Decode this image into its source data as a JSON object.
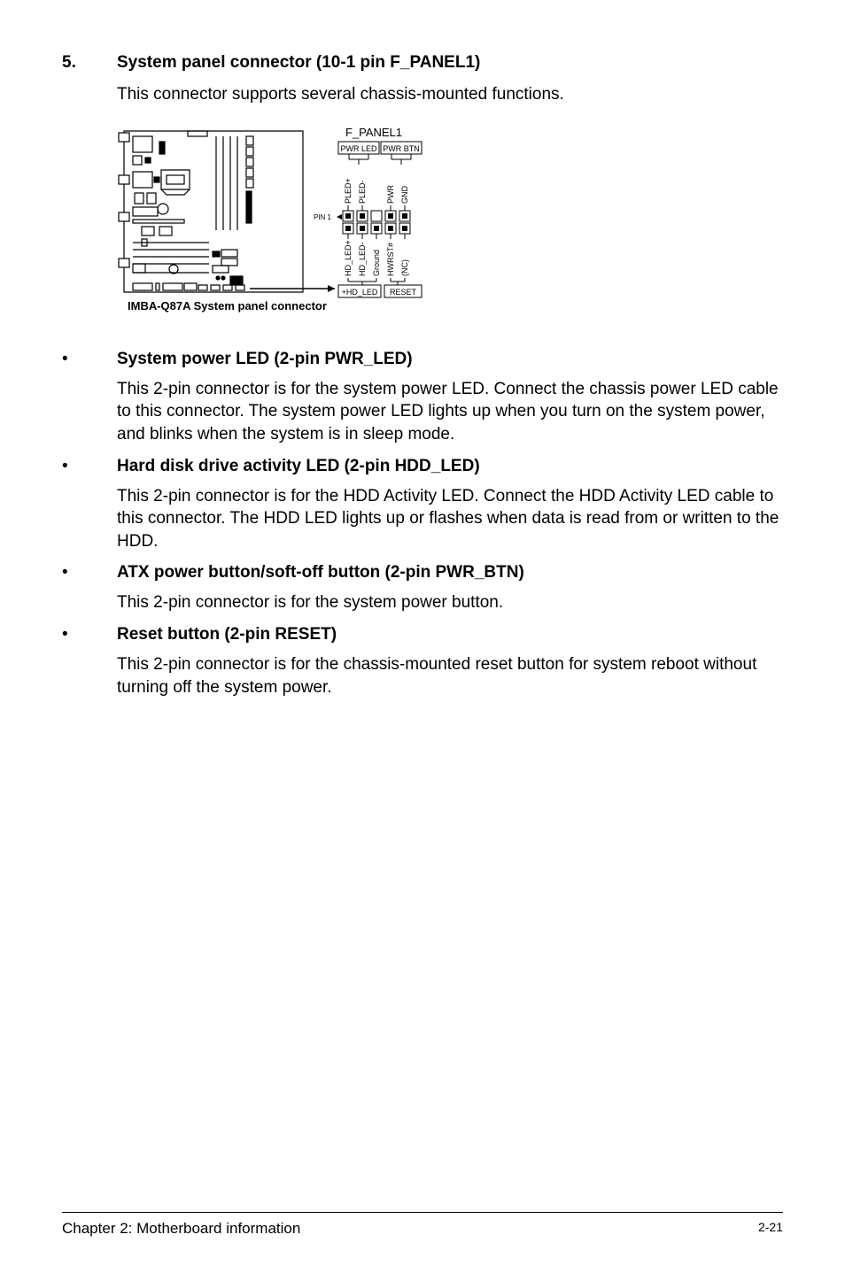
{
  "section": {
    "number": "5.",
    "title": "System panel connector (10-1 pin F_PANEL1)",
    "text": "This connector supports several chassis-mounted functions."
  },
  "diagram": {
    "header_label": "F_PANEL1",
    "pwr_led_label": "PWR LED",
    "pwr_btn_label": "PWR BTN",
    "hd_led_box": "+HD_LED",
    "reset_box": "RESET",
    "pin1_label": "PIN 1",
    "caption": "IMBA-Q87A System panel connector",
    "top_pins": [
      "PLED+",
      "PLED-",
      "PWR",
      "GND"
    ],
    "bottom_pins": [
      "HD_LED+",
      "HD_LED-",
      "Ground",
      "HWRST#",
      "(NC)"
    ],
    "colors": {
      "line": "#000000",
      "fill": "#ffffff",
      "text": "#000000"
    },
    "fontsize_labels": 9,
    "fontsize_caption": 12
  },
  "bullets": [
    {
      "title": "System power LED (2-pin PWR_LED)",
      "text": "This 2-pin connector is for the system power LED. Connect the chassis power LED cable to this connector. The system power LED lights up when you turn on the system power, and blinks when the system is in sleep mode."
    },
    {
      "title": "Hard disk drive activity LED (2-pin HDD_LED)",
      "text": "This 2-pin connector is for the HDD Activity LED. Connect the HDD Activity LED cable to this connector. The HDD LED lights up or flashes when data is read from or written to the HDD."
    },
    {
      "title": "ATX power button/soft-off button (2-pin PWR_BTN)",
      "text": "This 2-pin connector is for the system power button."
    },
    {
      "title": "Reset button (2-pin RESET)",
      "text": "This 2-pin connector is for the chassis-mounted reset button for system reboot without turning off the system power."
    }
  ],
  "footer": {
    "left": "Chapter 2: Motherboard information",
    "right": "2-21"
  }
}
